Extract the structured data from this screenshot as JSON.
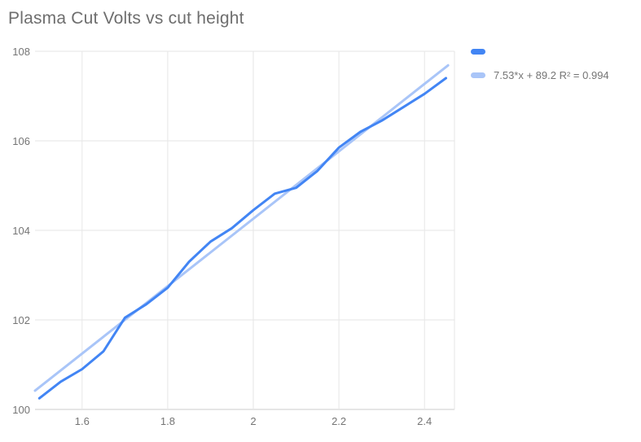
{
  "title": "Plasma Cut Volts vs cut height",
  "legend": {
    "series_label": "",
    "trendline_label": "7.53*x + 89.2 R² = 0.994"
  },
  "colors": {
    "series": "#4285F4",
    "trendline": "#A9C5F8",
    "title_text": "#6e6e6e",
    "tick_text": "#757575",
    "gridline": "#e6e6e6",
    "axis_line": "#cccccc"
  },
  "chart_data": {
    "type": "line",
    "title": "Plasma Cut Volts vs cut height",
    "xlabel": "",
    "ylabel": "",
    "grid": true,
    "legend_position": "right",
    "x": [
      1.5,
      1.55,
      1.6,
      1.65,
      1.7,
      1.75,
      1.8,
      1.85,
      1.9,
      1.95,
      2.0,
      2.05,
      2.1,
      2.15,
      2.2,
      2.25,
      2.3,
      2.35,
      2.4,
      2.45
    ],
    "series": [
      {
        "name": "",
        "color": "#4285F4",
        "values": [
          100.25,
          100.62,
          100.9,
          101.3,
          102.05,
          102.35,
          102.72,
          103.3,
          103.75,
          104.05,
          104.45,
          104.82,
          104.95,
          105.33,
          105.85,
          106.2,
          106.45,
          106.75,
          107.05,
          107.4
        ]
      }
    ],
    "trendline": {
      "label": "7.53*x + 89.2 R² = 0.994",
      "slope": 7.53,
      "intercept": 89.2,
      "r_squared": 0.994,
      "color": "#A9C5F8",
      "x_start": 1.49,
      "x_end": 2.455
    },
    "x_ticks": [
      1.6,
      1.8,
      2.0,
      2.2,
      2.4
    ],
    "x_tick_labels": [
      "1.6",
      "1.8",
      "2",
      "2.2",
      "2.4"
    ],
    "y_ticks": [
      100,
      102,
      104,
      106,
      108
    ],
    "y_tick_labels": [
      "100",
      "102",
      "104",
      "106",
      "108"
    ],
    "xlim": [
      1.49,
      2.47
    ],
    "ylim": [
      100,
      108
    ]
  }
}
